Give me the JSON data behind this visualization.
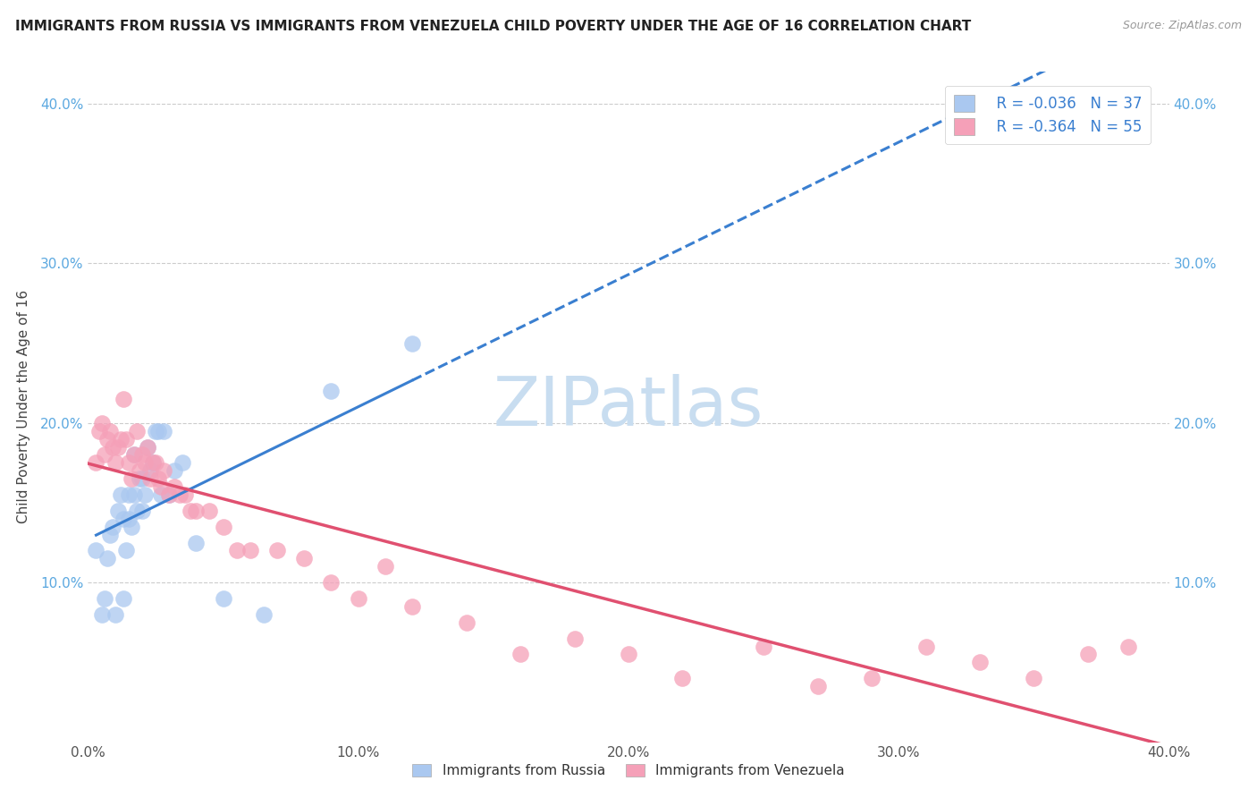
{
  "title": "IMMIGRANTS FROM RUSSIA VS IMMIGRANTS FROM VENEZUELA CHILD POVERTY UNDER THE AGE OF 16 CORRELATION CHART",
  "source": "Source: ZipAtlas.com",
  "ylabel": "Child Poverty Under the Age of 16",
  "russia_R": -0.036,
  "russia_N": 37,
  "venezuela_R": -0.364,
  "venezuela_N": 55,
  "russia_color": "#aac8f0",
  "venezuela_color": "#f5a0b8",
  "russia_line_color": "#3a7fd0",
  "venezuela_line_color": "#e05070",
  "background_color": "#ffffff",
  "grid_color": "#cccccc",
  "title_fontsize": 11,
  "xlim": [
    0.0,
    0.4
  ],
  "ylim": [
    0.0,
    0.42
  ],
  "legend_labels": [
    "Immigrants from Russia",
    "Immigrants from Venezuela"
  ],
  "russia_scatter_x": [
    0.003,
    0.005,
    0.006,
    0.007,
    0.008,
    0.009,
    0.01,
    0.011,
    0.012,
    0.013,
    0.013,
    0.014,
    0.015,
    0.015,
    0.016,
    0.017,
    0.017,
    0.018,
    0.019,
    0.02,
    0.02,
    0.021,
    0.022,
    0.023,
    0.024,
    0.025,
    0.026,
    0.027,
    0.028,
    0.03,
    0.032,
    0.035,
    0.04,
    0.05,
    0.065,
    0.09,
    0.12
  ],
  "russia_scatter_y": [
    0.12,
    0.08,
    0.09,
    0.115,
    0.13,
    0.135,
    0.08,
    0.145,
    0.155,
    0.14,
    0.09,
    0.12,
    0.14,
    0.155,
    0.135,
    0.155,
    0.18,
    0.145,
    0.165,
    0.145,
    0.165,
    0.155,
    0.185,
    0.17,
    0.175,
    0.195,
    0.195,
    0.155,
    0.195,
    0.155,
    0.17,
    0.175,
    0.125,
    0.09,
    0.08,
    0.22,
    0.25
  ],
  "venezuela_scatter_x": [
    0.003,
    0.004,
    0.005,
    0.006,
    0.007,
    0.008,
    0.009,
    0.01,
    0.011,
    0.012,
    0.013,
    0.014,
    0.015,
    0.016,
    0.017,
    0.018,
    0.019,
    0.02,
    0.021,
    0.022,
    0.023,
    0.024,
    0.025,
    0.026,
    0.027,
    0.028,
    0.03,
    0.032,
    0.034,
    0.036,
    0.038,
    0.04,
    0.045,
    0.05,
    0.055,
    0.06,
    0.07,
    0.08,
    0.09,
    0.1,
    0.11,
    0.12,
    0.14,
    0.16,
    0.18,
    0.2,
    0.22,
    0.25,
    0.27,
    0.29,
    0.31,
    0.33,
    0.35,
    0.37,
    0.385
  ],
  "venezuela_scatter_y": [
    0.175,
    0.195,
    0.2,
    0.18,
    0.19,
    0.195,
    0.185,
    0.175,
    0.185,
    0.19,
    0.215,
    0.19,
    0.175,
    0.165,
    0.18,
    0.195,
    0.17,
    0.18,
    0.175,
    0.185,
    0.165,
    0.175,
    0.175,
    0.165,
    0.16,
    0.17,
    0.155,
    0.16,
    0.155,
    0.155,
    0.145,
    0.145,
    0.145,
    0.135,
    0.12,
    0.12,
    0.12,
    0.115,
    0.1,
    0.09,
    0.11,
    0.085,
    0.075,
    0.055,
    0.065,
    0.055,
    0.04,
    0.06,
    0.035,
    0.04,
    0.06,
    0.05,
    0.04,
    0.055,
    0.06
  ],
  "watermark_text": "ZIPatlas",
  "watermark_color": "#c8ddf0",
  "watermark_fontsize": 55
}
